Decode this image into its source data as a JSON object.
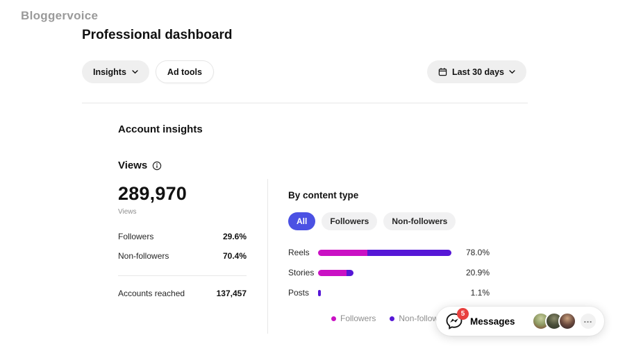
{
  "watermark": "Bloggervoice",
  "header": {
    "title": "Professional dashboard"
  },
  "toolbar": {
    "insights_label": "Insights",
    "ad_tools_label": "Ad tools",
    "date_range_label": "Last 30 days"
  },
  "section": {
    "title": "Account insights"
  },
  "views": {
    "title": "Views",
    "total": "289,970",
    "total_sublabel": "Views",
    "breakdown": [
      {
        "label": "Followers",
        "value": "29.6%"
      },
      {
        "label": "Non-followers",
        "value": "70.4%"
      }
    ],
    "accounts_reached_label": "Accounts reached",
    "accounts_reached_value": "137,457"
  },
  "content_type": {
    "title": "By content type",
    "tabs": [
      {
        "label": "All",
        "active": true
      },
      {
        "label": "Followers",
        "active": false
      },
      {
        "label": "Non-followers",
        "active": false
      }
    ],
    "active_tab_color": "#4b51e3",
    "legend": [
      {
        "label": "Followers",
        "color": "#ca11c4"
      },
      {
        "label": "Non-followers",
        "color": "#5617d6"
      }
    ]
  },
  "chart_data": {
    "type": "bar",
    "title": "By content type",
    "categories": [
      "Reels",
      "Stories",
      "Posts"
    ],
    "series": [
      {
        "name": "Followers",
        "color": "#ca11c4",
        "values": [
          28.7,
          16.7,
          0
        ]
      },
      {
        "name": "Non-followers",
        "color": "#5617d6",
        "values": [
          49.3,
          4.2,
          1.1
        ]
      }
    ],
    "totals": [
      "78.0%",
      "20.9%",
      "1.1%"
    ],
    "orientation": "horizontal",
    "xlim": [
      0,
      78
    ],
    "legend_position": "bottom"
  },
  "messages": {
    "label": "Messages",
    "badge": "5",
    "badge_color": "#e8403e",
    "more": "…",
    "avatars": [
      {
        "name": "avatar-1",
        "colors": [
          "#c8cf9f",
          "#8e9a62",
          "#7d3b2d"
        ]
      },
      {
        "name": "avatar-2",
        "colors": [
          "#8a8a6a",
          "#4a4f3a",
          "#2e3328"
        ]
      },
      {
        "name": "avatar-3",
        "colors": [
          "#caa27e",
          "#6b4a3e",
          "#2a2125"
        ]
      }
    ]
  }
}
